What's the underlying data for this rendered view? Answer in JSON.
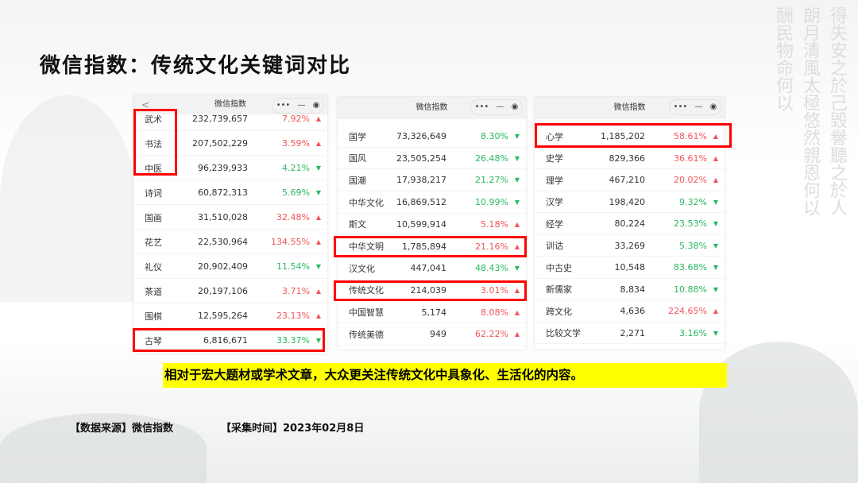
{
  "title": "微信指数：传统文化关键词对比",
  "panel_header": "微信指数",
  "controls": {
    "more": "•••",
    "minimize": "—",
    "close": "◉"
  },
  "colors": {
    "up": "#f0555a",
    "down": "#29b860",
    "highlight": "#ff0000",
    "banner": "#ffff00"
  },
  "tables": [
    {
      "rows": [
        {
          "keyword": "武术",
          "index": "232,739,657",
          "change": "7.92%",
          "dir": "up"
        },
        {
          "keyword": "书法",
          "index": "207,502,229",
          "change": "3.59%",
          "dir": "up"
        },
        {
          "keyword": "中医",
          "index": "96,239,933",
          "change": "4.21%",
          "dir": "down"
        },
        {
          "keyword": "诗词",
          "index": "60,872,313",
          "change": "5.69%",
          "dir": "down"
        },
        {
          "keyword": "国画",
          "index": "31,510,028",
          "change": "32.48%",
          "dir": "up"
        },
        {
          "keyword": "花艺",
          "index": "22,530,964",
          "change": "134.55%",
          "dir": "up"
        },
        {
          "keyword": "礼仪",
          "index": "20,902,409",
          "change": "11.54%",
          "dir": "down"
        },
        {
          "keyword": "茶道",
          "index": "20,197,106",
          "change": "3.71%",
          "dir": "up"
        },
        {
          "keyword": "围棋",
          "index": "12,595,264",
          "change": "23.13%",
          "dir": "up"
        },
        {
          "keyword": "古琴",
          "index": "6,816,671",
          "change": "33.37%",
          "dir": "down"
        }
      ]
    },
    {
      "rows": [
        {
          "keyword": "国学",
          "index": "73,326,649",
          "change": "8.30%",
          "dir": "down"
        },
        {
          "keyword": "国风",
          "index": "23,505,254",
          "change": "26.48%",
          "dir": "down"
        },
        {
          "keyword": "国潮",
          "index": "17,938,217",
          "change": "21.27%",
          "dir": "down"
        },
        {
          "keyword": "中华文化",
          "index": "16,869,512",
          "change": "10.99%",
          "dir": "down"
        },
        {
          "keyword": "斯文",
          "index": "10,599,914",
          "change": "5.18%",
          "dir": "up"
        },
        {
          "keyword": "中华文明",
          "index": "1,785,894",
          "change": "21.16%",
          "dir": "up"
        },
        {
          "keyword": "汉文化",
          "index": "447,041",
          "change": "48.43%",
          "dir": "down"
        },
        {
          "keyword": "传统文化",
          "index": "214,039",
          "change": "3.01%",
          "dir": "up"
        },
        {
          "keyword": "中国智慧",
          "index": "5,174",
          "change": "8.08%",
          "dir": "up"
        },
        {
          "keyword": "传统美德",
          "index": "949",
          "change": "62.22%",
          "dir": "up"
        }
      ]
    },
    {
      "rows": [
        {
          "keyword": "心学",
          "index": "1,185,202",
          "change": "58.61%",
          "dir": "up"
        },
        {
          "keyword": "史学",
          "index": "829,366",
          "change": "36.61%",
          "dir": "up"
        },
        {
          "keyword": "理学",
          "index": "467,210",
          "change": "20.02%",
          "dir": "up"
        },
        {
          "keyword": "汉学",
          "index": "198,420",
          "change": "9.32%",
          "dir": "down"
        },
        {
          "keyword": "经学",
          "index": "80,224",
          "change": "23.53%",
          "dir": "down"
        },
        {
          "keyword": "训诂",
          "index": "33,269",
          "change": "5.38%",
          "dir": "down"
        },
        {
          "keyword": "中古史",
          "index": "10,548",
          "change": "83.68%",
          "dir": "down"
        },
        {
          "keyword": "新儒家",
          "index": "8,834",
          "change": "10.88%",
          "dir": "down"
        },
        {
          "keyword": "跨文化",
          "index": "4,636",
          "change": "224.65%",
          "dir": "up"
        },
        {
          "keyword": "比较文学",
          "index": "2,271",
          "change": "3.16%",
          "dir": "down"
        }
      ]
    }
  ],
  "conclusion": "相对于宏大题材或学术文章，大众更关注传统文化中具象化、生活化的内容。",
  "footer": {
    "source": "【数据来源】微信指数",
    "time": "【采集时间】2023年02月8日"
  }
}
